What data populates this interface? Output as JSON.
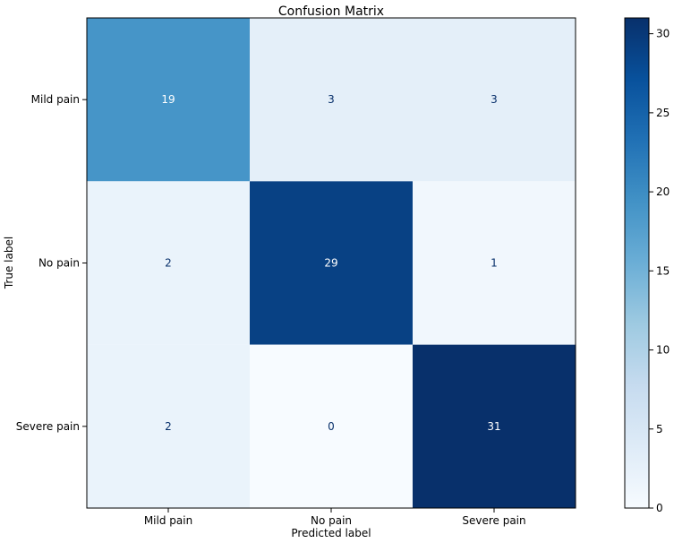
{
  "chart_data": {
    "type": "heatmap",
    "title": "Confusion Matrix",
    "xlabel": "Predicted label",
    "ylabel": "True label",
    "x_categories": [
      "Mild pain",
      "No pain",
      "Severe pain"
    ],
    "y_categories": [
      "Mild pain",
      "No pain",
      "Severe pain"
    ],
    "values": [
      [
        19,
        3,
        3
      ],
      [
        2,
        29,
        1
      ],
      [
        2,
        0,
        31
      ]
    ],
    "colorbar": {
      "range": [
        0,
        31
      ],
      "ticks": [
        0,
        5,
        10,
        15,
        20,
        25,
        30
      ],
      "colormap": "Blues"
    }
  }
}
